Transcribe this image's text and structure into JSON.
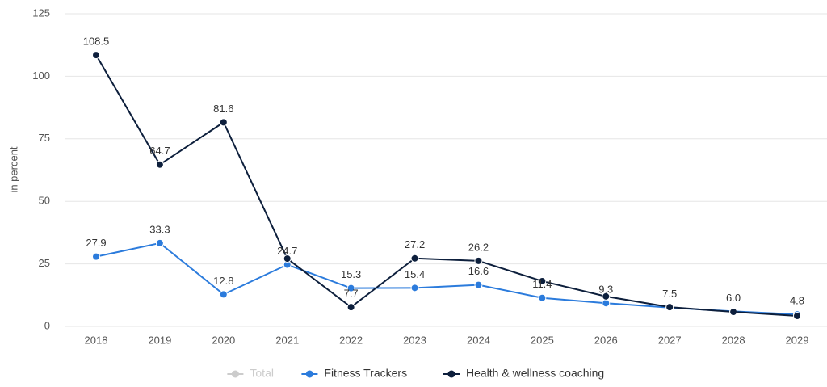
{
  "chart_data": {
    "type": "line",
    "y_label": "in percent",
    "categories": [
      "2018",
      "2019",
      "2020",
      "2021",
      "2022",
      "2023",
      "2024",
      "2025",
      "2026",
      "2027",
      "2028",
      "2029"
    ],
    "series": [
      {
        "name": "Total",
        "color": "#cccccc",
        "hidden": true,
        "values": [
          null,
          null,
          null,
          null,
          null,
          null,
          null,
          null,
          null,
          null,
          null,
          null
        ]
      },
      {
        "name": "Fitness Trackers",
        "color": "#2b7bdc",
        "values": [
          27.9,
          33.3,
          12.8,
          24.7,
          15.3,
          15.4,
          16.6,
          11.4,
          9.3,
          7.5,
          6.0,
          4.8
        ],
        "value_labels": [
          "27.9",
          "33.3",
          "12.8",
          "24.7",
          "15.3",
          "15.4",
          "16.6",
          "11.4",
          "9.3",
          "7.5",
          "6.0",
          "4.8"
        ]
      },
      {
        "name": "Health & wellness coaching",
        "color": "#0d1f3c",
        "values": [
          108.5,
          64.7,
          81.6,
          27.1,
          7.7,
          27.2,
          26.2,
          18.1,
          12.0,
          7.7,
          5.8,
          4.2
        ],
        "value_labels": [
          "108.5",
          "64.7",
          "81.6",
          null,
          "7.7",
          "27.2",
          "26.2",
          null,
          null,
          null,
          null,
          null
        ]
      }
    ],
    "ylim": [
      0,
      125
    ],
    "yticks": [
      0,
      25,
      50,
      75,
      100,
      125
    ],
    "grid": true
  }
}
